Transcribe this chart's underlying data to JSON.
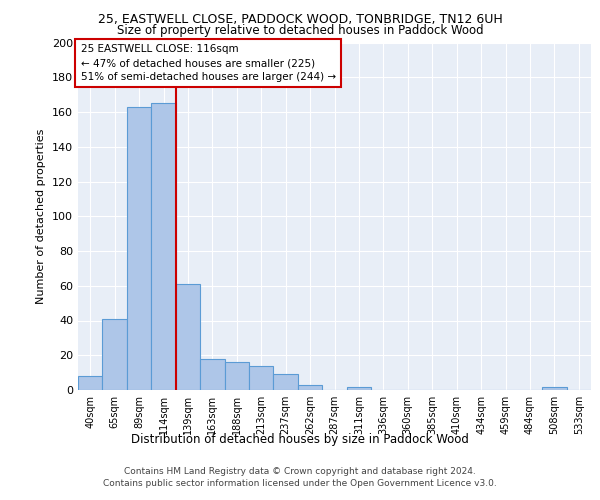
{
  "title1": "25, EASTWELL CLOSE, PADDOCK WOOD, TONBRIDGE, TN12 6UH",
  "title2": "Size of property relative to detached houses in Paddock Wood",
  "xlabel": "Distribution of detached houses by size in Paddock Wood",
  "ylabel": "Number of detached properties",
  "categories": [
    "40sqm",
    "65sqm",
    "89sqm",
    "114sqm",
    "139sqm",
    "163sqm",
    "188sqm",
    "213sqm",
    "237sqm",
    "262sqm",
    "287sqm",
    "311sqm",
    "336sqm",
    "360sqm",
    "385sqm",
    "410sqm",
    "434sqm",
    "459sqm",
    "484sqm",
    "508sqm",
    "533sqm"
  ],
  "values": [
    8,
    41,
    163,
    165,
    61,
    18,
    16,
    14,
    9,
    3,
    0,
    2,
    0,
    0,
    0,
    0,
    0,
    0,
    0,
    2,
    0
  ],
  "bar_color": "#aec6e8",
  "bar_edge_color": "#5b9bd5",
  "bg_color": "#e8eef7",
  "grid_color": "#ffffff",
  "red_line_x": 3.5,
  "annotation_text": "25 EASTWELL CLOSE: 116sqm\n← 47% of detached houses are smaller (225)\n51% of semi-detached houses are larger (244) →",
  "annotation_box_color": "#ffffff",
  "annotation_box_edge": "#cc0000",
  "footer1": "Contains HM Land Registry data © Crown copyright and database right 2024.",
  "footer2": "Contains public sector information licensed under the Open Government Licence v3.0.",
  "ylim": [
    0,
    200
  ],
  "yticks": [
    0,
    20,
    40,
    60,
    80,
    100,
    120,
    140,
    160,
    180,
    200
  ]
}
